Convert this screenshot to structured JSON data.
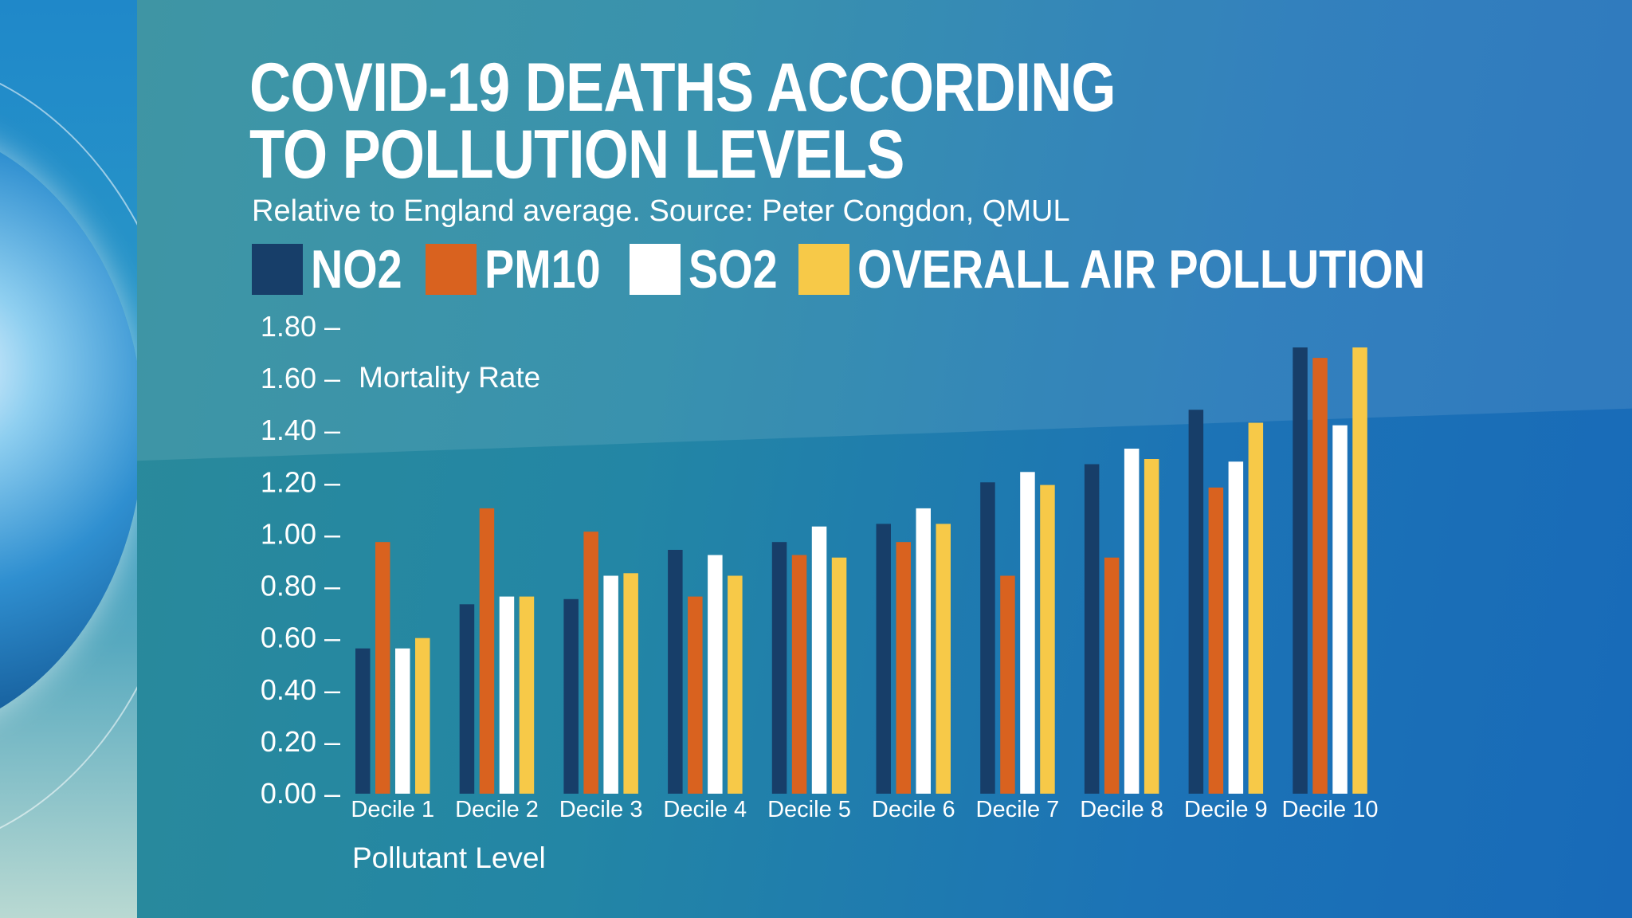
{
  "chart_data": {
    "type": "bar",
    "title": "COVID-19 DEATHS ACCORDING TO POLLUTION LEVELS",
    "title_lines": [
      "COVID-19 DEATHS ACCORDING",
      "TO POLLUTION LEVELS"
    ],
    "subtitle": "Relative to England average.  Source: Peter Congdon, QMUL",
    "ylabel": "Mortality Rate",
    "xlabel": "Pollutant Level",
    "ylim": [
      0,
      1.8
    ],
    "yticks": [
      "0.00 –",
      "0.20 –",
      "0.40 –",
      "0.60 –",
      "0.80 –",
      "1.00 –",
      "1.20 –",
      "1.40 –",
      "1.60 –",
      "1.80 –"
    ],
    "ytick_values": [
      0,
      0.2,
      0.4,
      0.6,
      0.8,
      1.0,
      1.2,
      1.4,
      1.6,
      1.8
    ],
    "legend_position": "top",
    "categories": [
      "Decile 1",
      "Decile 2",
      "Decile 3",
      "Decile 4",
      "Decile 5",
      "Decile 6",
      "Decile 7",
      "Decile 8",
      "Decile 9",
      "Decile 10"
    ],
    "series": [
      {
        "name": "NO2",
        "color": "#173e69",
        "values": [
          0.56,
          0.73,
          0.75,
          0.94,
          0.97,
          1.04,
          1.2,
          1.27,
          1.48,
          1.72
        ]
      },
      {
        "name": "PM10",
        "color": "#d9621f",
        "values": [
          0.97,
          1.1,
          1.01,
          0.76,
          0.92,
          0.97,
          0.84,
          0.91,
          1.18,
          1.68
        ]
      },
      {
        "name": "SO2",
        "color": "#ffffff",
        "values": [
          0.56,
          0.76,
          0.84,
          0.92,
          1.03,
          1.1,
          1.24,
          1.33,
          1.28,
          1.42
        ]
      },
      {
        "name": "OVERALL AIR POLLUTION",
        "color": "#f7c948",
        "values": [
          0.6,
          0.76,
          0.85,
          0.84,
          0.91,
          1.04,
          1.19,
          1.29,
          1.43,
          1.72
        ]
      }
    ]
  }
}
